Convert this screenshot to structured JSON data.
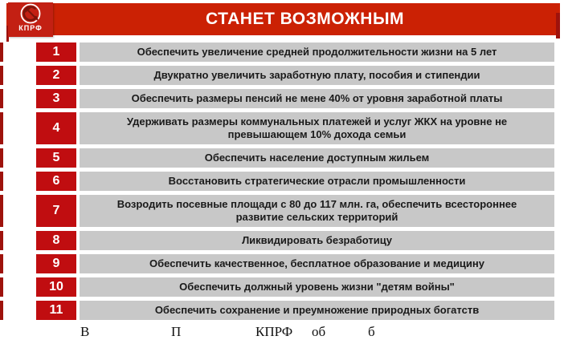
{
  "header": {
    "title": "СТАНЕТ ВОЗМОЖНЫМ",
    "logo_text": "КПРФ"
  },
  "colors": {
    "header_red": "#cb2104",
    "logo_red": "#c32013",
    "badge_red": "#c00d10",
    "bar_gray": "#c8c8c8",
    "sliver_red": "#9e120c",
    "emblem_dark": "#7c150b"
  },
  "items": [
    {
      "num": "1",
      "text": "Обеспечить увеличение средней продолжительности жизни на 5 лет",
      "tall": false
    },
    {
      "num": "2",
      "text": "Двукратно увеличить заработную плату, пособия и стипендии",
      "tall": false
    },
    {
      "num": "3",
      "text": "Обеспечить размеры пенсий не мене 40% от уровня заработной платы",
      "tall": false
    },
    {
      "num": "4",
      "text": "Удерживать размеры коммунальных платежей и услуг ЖКХ на уровне не превышающем 10% дохода семьи",
      "tall": true
    },
    {
      "num": "5",
      "text": "Обеспечить население доступным жильем",
      "tall": false
    },
    {
      "num": "6",
      "text": "Восстановить стратегические отрасли промышленности",
      "tall": false
    },
    {
      "num": "7",
      "text": "Возродить посевные площади с 80 до 117 млн. га, обеспечить всестороннее развитие сельских территорий",
      "tall": true
    },
    {
      "num": "8",
      "text": "Ликвидировать безработицу",
      "tall": false
    },
    {
      "num": "9",
      "text": "Обеспечить качественное, бесплатное образование и медицину",
      "tall": false
    },
    {
      "num": "10",
      "text": "Обеспечить должный уровень жизни \"детям войны\"",
      "tall": false
    },
    {
      "num": "11",
      "text": "Обеспечить сохранение и преумножение природных богатств",
      "tall": false
    }
  ],
  "caption_fragments": [
    "В",
    "П",
    "КПРФ",
    "об",
    "б"
  ]
}
